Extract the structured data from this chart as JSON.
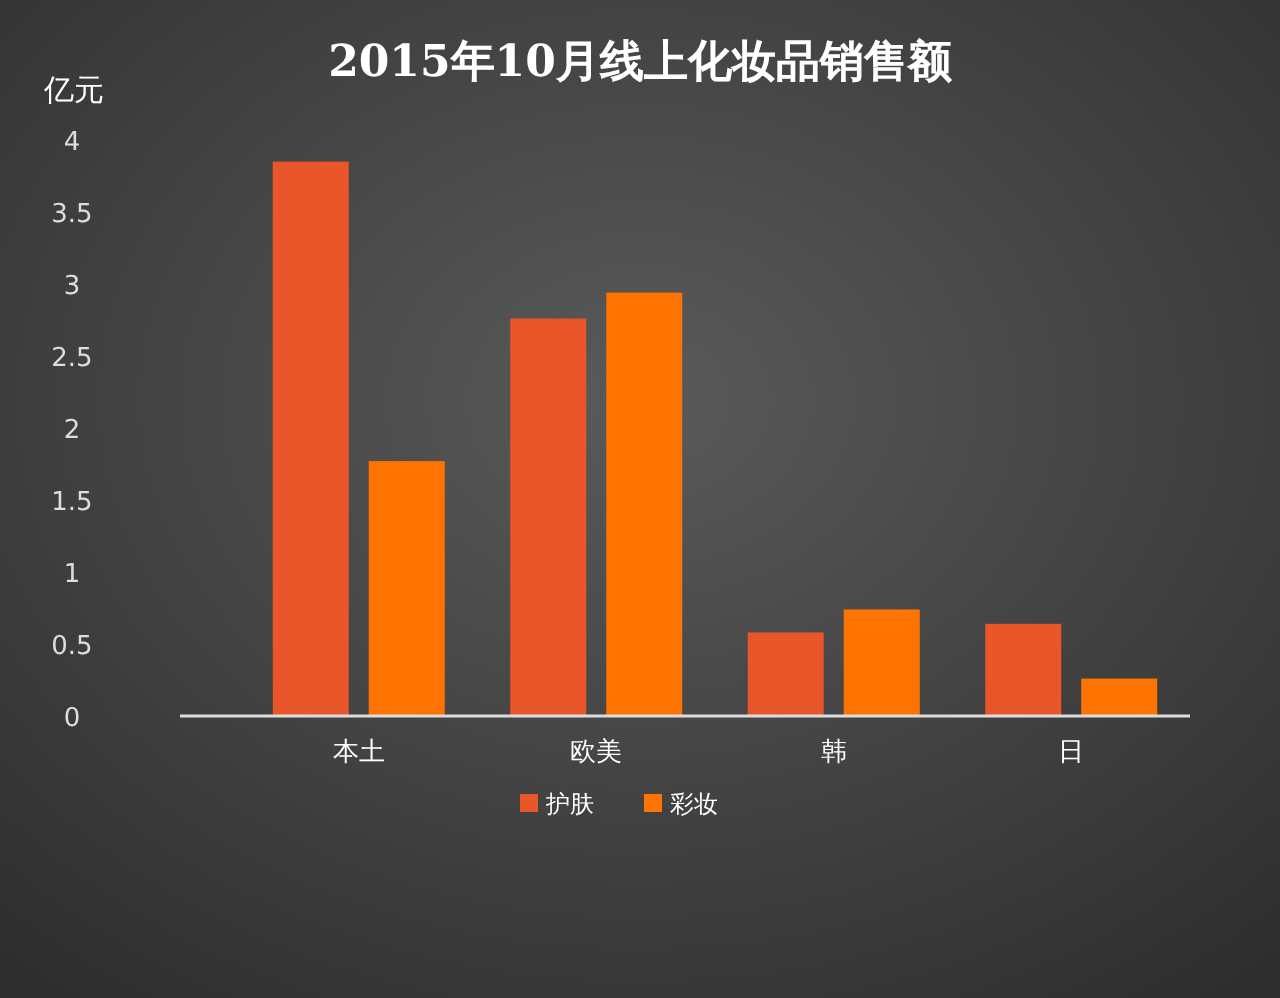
{
  "chart_data": {
    "type": "bar",
    "title": "2015年10月线上化妆品销售额",
    "ylabel": "亿元",
    "categories": [
      "本土",
      "欧美",
      "韩",
      "日"
    ],
    "series": [
      {
        "name": "护肤",
        "color": "#e8562a",
        "values": [
          3.85,
          2.76,
          0.58,
          0.64
        ]
      },
      {
        "name": "彩妆",
        "color": "#ff7300",
        "values": [
          1.77,
          2.94,
          0.74,
          0.26
        ]
      }
    ],
    "ylim": [
      0,
      4
    ],
    "yticks": [
      0,
      0.5,
      1,
      1.5,
      2,
      2.5,
      3,
      3.5,
      4
    ],
    "grid": false,
    "legend": "bottom"
  }
}
